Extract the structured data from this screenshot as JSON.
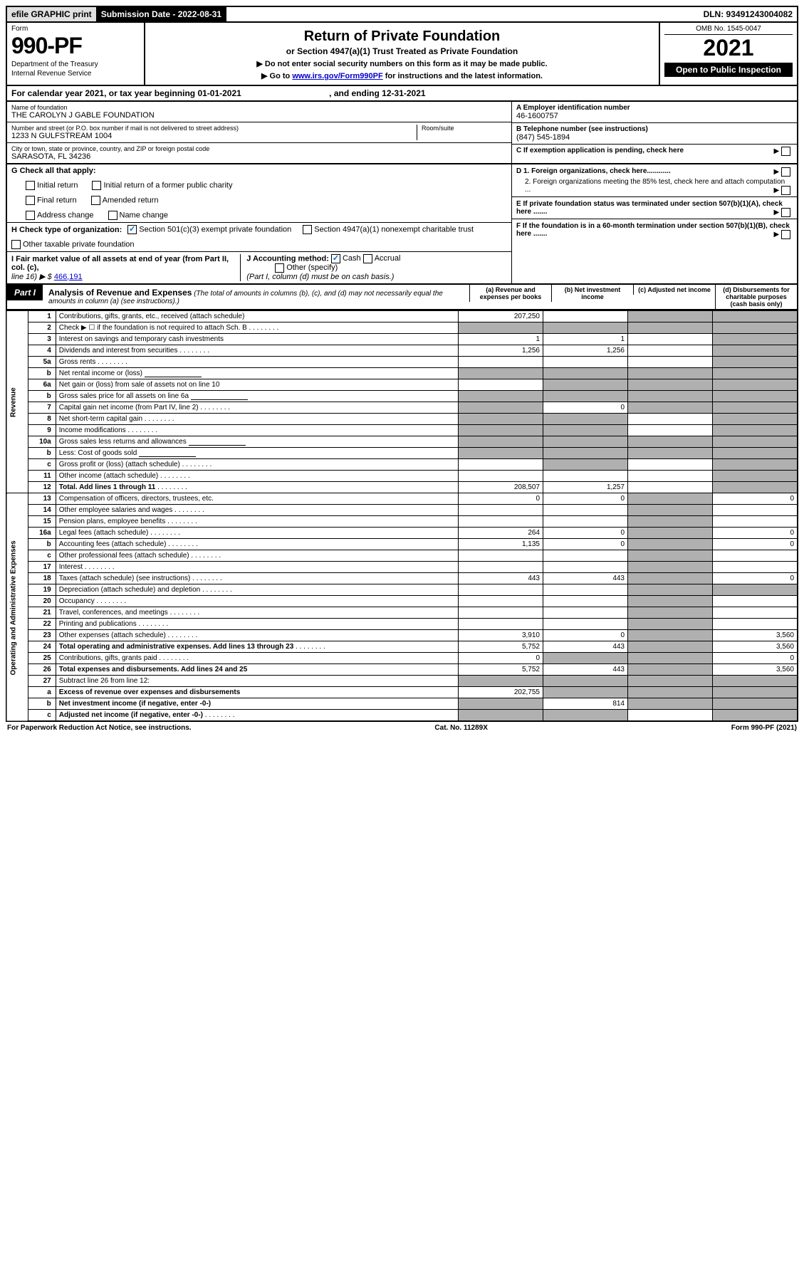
{
  "header": {
    "efile": "efile GRAPHIC print",
    "submission_label": "Submission Date - 2022-08-31",
    "dln": "DLN: 93491243004082"
  },
  "form_header": {
    "form_word": "Form",
    "form_number": "990-PF",
    "dept": "Department of the Treasury",
    "irs": "Internal Revenue Service",
    "title": "Return of Private Foundation",
    "subtitle": "or Section 4947(a)(1) Trust Treated as Private Foundation",
    "note1": "▶ Do not enter social security numbers on this form as it may be made public.",
    "note2_prefix": "▶ Go to ",
    "note2_link": "www.irs.gov/Form990PF",
    "note2_suffix": " for instructions and the latest information.",
    "omb": "OMB No. 1545-0047",
    "year": "2021",
    "open": "Open to Public Inspection"
  },
  "calendar": {
    "text_a": "For calendar year 2021, or tax year beginning 01-01-2021",
    "text_b": ", and ending 12-31-2021"
  },
  "identity": {
    "name_label": "Name of foundation",
    "name": "THE CAROLYN J GABLE FOUNDATION",
    "addr_label": "Number and street (or P.O. box number if mail is not delivered to street address)",
    "addr": "1233 N GULFSTREAM 1004",
    "room_label": "Room/suite",
    "city_label": "City or town, state or province, country, and ZIP or foreign postal code",
    "city": "SARASOTA, FL  34236",
    "ein_label": "A Employer identification number",
    "ein": "46-1600757",
    "tel_label": "B Telephone number (see instructions)",
    "tel": "(847) 545-1894",
    "c_label": "C If exemption application is pending, check here",
    "d1": "D 1. Foreign organizations, check here............",
    "d2": "2. Foreign organizations meeting the 85% test, check here and attach computation ...",
    "e_label": "E If private foundation status was terminated under section 507(b)(1)(A), check here .......",
    "f_label": "F If the foundation is in a 60-month termination under section 507(b)(1)(B), check here ......."
  },
  "section_g": {
    "label": "G Check all that apply:",
    "o1": "Initial return",
    "o2": "Initial return of a former public charity",
    "o3": "Final return",
    "o4": "Amended return",
    "o5": "Address change",
    "o6": "Name change"
  },
  "section_h": {
    "label": "H Check type of organization:",
    "o1": "Section 501(c)(3) exempt private foundation",
    "o2": "Section 4947(a)(1) nonexempt charitable trust",
    "o3": "Other taxable private foundation"
  },
  "section_i": {
    "label": "I Fair market value of all assets at end of year (from Part II, col. (c),",
    "line": "line 16) ▶ $ ",
    "value": "466,191",
    "j_label": "J Accounting method:",
    "j_cash": "Cash",
    "j_accrual": "Accrual",
    "j_other": "Other (specify)",
    "j_note": "(Part I, column (d) must be on cash basis.)"
  },
  "part1": {
    "label": "Part I",
    "title": "Analysis of Revenue and Expenses",
    "note": " (The total of amounts in columns (b), (c), and (d) may not necessarily equal the amounts in column (a) (see instructions).)",
    "col_a": "(a) Revenue and expenses per books",
    "col_b": "(b) Net investment income",
    "col_c": "(c) Adjusted net income",
    "col_d": "(d) Disbursements for charitable purposes (cash basis only)"
  },
  "vert": {
    "revenue": "Revenue",
    "expenses": "Operating and Administrative Expenses"
  },
  "rows": [
    {
      "n": "1",
      "d": "Contributions, gifts, grants, etc., received (attach schedule)",
      "a": "207,250",
      "b": "",
      "c": "shaded",
      "dcol": "shaded"
    },
    {
      "n": "2",
      "d": "Check ▶ ☐ if the foundation is not required to attach Sch. B",
      "dots": true,
      "a": "shaded",
      "b": "shaded",
      "c": "shaded",
      "dcol": "shaded"
    },
    {
      "n": "3",
      "d": "Interest on savings and temporary cash investments",
      "a": "1",
      "b": "1",
      "c": "",
      "dcol": "shaded"
    },
    {
      "n": "4",
      "d": "Dividends and interest from securities",
      "dots": true,
      "a": "1,256",
      "b": "1,256",
      "c": "",
      "dcol": "shaded"
    },
    {
      "n": "5a",
      "d": "Gross rents",
      "dots": true,
      "a": "",
      "b": "",
      "c": "",
      "dcol": "shaded"
    },
    {
      "n": "b",
      "d": "Net rental income or (loss)",
      "inline": true,
      "a": "shaded",
      "b": "shaded",
      "c": "shaded",
      "dcol": "shaded"
    },
    {
      "n": "6a",
      "d": "Net gain or (loss) from sale of assets not on line 10",
      "a": "",
      "b": "shaded",
      "c": "shaded",
      "dcol": "shaded"
    },
    {
      "n": "b",
      "d": "Gross sales price for all assets on line 6a",
      "inline": true,
      "a": "shaded",
      "b": "shaded",
      "c": "shaded",
      "dcol": "shaded"
    },
    {
      "n": "7",
      "d": "Capital gain net income (from Part IV, line 2)",
      "dots": true,
      "a": "shaded",
      "b": "0",
      "c": "shaded",
      "dcol": "shaded"
    },
    {
      "n": "8",
      "d": "Net short-term capital gain",
      "dots": true,
      "a": "shaded",
      "b": "shaded",
      "c": "",
      "dcol": "shaded"
    },
    {
      "n": "9",
      "d": "Income modifications",
      "dots": true,
      "a": "shaded",
      "b": "shaded",
      "c": "",
      "dcol": "shaded"
    },
    {
      "n": "10a",
      "d": "Gross sales less returns and allowances",
      "inline": true,
      "a": "shaded",
      "b": "shaded",
      "c": "shaded",
      "dcol": "shaded"
    },
    {
      "n": "b",
      "d": "Less: Cost of goods sold",
      "dots": true,
      "inline": true,
      "a": "shaded",
      "b": "shaded",
      "c": "shaded",
      "dcol": "shaded"
    },
    {
      "n": "c",
      "d": "Gross profit or (loss) (attach schedule)",
      "dots": true,
      "a": "",
      "b": "shaded",
      "c": "",
      "dcol": "shaded"
    },
    {
      "n": "11",
      "d": "Other income (attach schedule)",
      "dots": true,
      "a": "",
      "b": "",
      "c": "",
      "dcol": "shaded"
    },
    {
      "n": "12",
      "d": "Total. Add lines 1 through 11",
      "dots": true,
      "bold": true,
      "a": "208,507",
      "b": "1,257",
      "c": "",
      "dcol": "shaded"
    },
    {
      "n": "13",
      "d": "Compensation of officers, directors, trustees, etc.",
      "a": "0",
      "b": "0",
      "c": "shaded",
      "dcol": "0"
    },
    {
      "n": "14",
      "d": "Other employee salaries and wages",
      "dots": true,
      "a": "",
      "b": "",
      "c": "shaded",
      "dcol": ""
    },
    {
      "n": "15",
      "d": "Pension plans, employee benefits",
      "dots": true,
      "a": "",
      "b": "",
      "c": "shaded",
      "dcol": ""
    },
    {
      "n": "16a",
      "d": "Legal fees (attach schedule)",
      "dots": true,
      "a": "264",
      "b": "0",
      "c": "shaded",
      "dcol": "0"
    },
    {
      "n": "b",
      "d": "Accounting fees (attach schedule)",
      "dots": true,
      "a": "1,135",
      "b": "0",
      "c": "shaded",
      "dcol": "0"
    },
    {
      "n": "c",
      "d": "Other professional fees (attach schedule)",
      "dots": true,
      "a": "",
      "b": "",
      "c": "shaded",
      "dcol": ""
    },
    {
      "n": "17",
      "d": "Interest",
      "dots": true,
      "a": "",
      "b": "",
      "c": "shaded",
      "dcol": ""
    },
    {
      "n": "18",
      "d": "Taxes (attach schedule) (see instructions)",
      "dots": true,
      "a": "443",
      "b": "443",
      "c": "shaded",
      "dcol": "0"
    },
    {
      "n": "19",
      "d": "Depreciation (attach schedule) and depletion",
      "dots": true,
      "a": "",
      "b": "",
      "c": "shaded",
      "dcol": "shaded"
    },
    {
      "n": "20",
      "d": "Occupancy",
      "dots": true,
      "a": "",
      "b": "",
      "c": "shaded",
      "dcol": ""
    },
    {
      "n": "21",
      "d": "Travel, conferences, and meetings",
      "dots": true,
      "a": "",
      "b": "",
      "c": "shaded",
      "dcol": ""
    },
    {
      "n": "22",
      "d": "Printing and publications",
      "dots": true,
      "a": "",
      "b": "",
      "c": "shaded",
      "dcol": ""
    },
    {
      "n": "23",
      "d": "Other expenses (attach schedule)",
      "dots": true,
      "a": "3,910",
      "b": "0",
      "c": "shaded",
      "dcol": "3,560"
    },
    {
      "n": "24",
      "d": "Total operating and administrative expenses. Add lines 13 through 23",
      "dots": true,
      "bold": true,
      "a": "5,752",
      "b": "443",
      "c": "shaded",
      "dcol": "3,560"
    },
    {
      "n": "25",
      "d": "Contributions, gifts, grants paid",
      "dots": true,
      "a": "0",
      "b": "shaded",
      "c": "shaded",
      "dcol": "0"
    },
    {
      "n": "26",
      "d": "Total expenses and disbursements. Add lines 24 and 25",
      "bold": true,
      "a": "5,752",
      "b": "443",
      "c": "shaded",
      "dcol": "3,560"
    },
    {
      "n": "27",
      "d": "Subtract line 26 from line 12:",
      "a": "shaded",
      "b": "shaded",
      "c": "shaded",
      "dcol": "shaded"
    },
    {
      "n": "a",
      "d": "Excess of revenue over expenses and disbursements",
      "bold": true,
      "a": "202,755",
      "b": "shaded",
      "c": "shaded",
      "dcol": "shaded"
    },
    {
      "n": "b",
      "d": "Net investment income (if negative, enter -0-)",
      "bold": true,
      "a": "shaded",
      "b": "814",
      "c": "shaded",
      "dcol": "shaded"
    },
    {
      "n": "c",
      "d": "Adjusted net income (if negative, enter -0-)",
      "dots": true,
      "bold": true,
      "a": "shaded",
      "b": "shaded",
      "c": "",
      "dcol": "shaded"
    }
  ],
  "footer": {
    "left": "For Paperwork Reduction Act Notice, see instructions.",
    "center": "Cat. No. 11289X",
    "right": "Form 990-PF (2021)"
  }
}
